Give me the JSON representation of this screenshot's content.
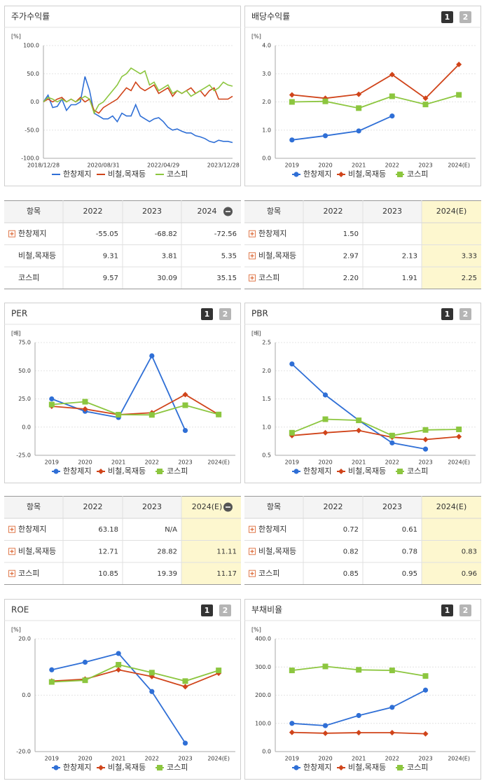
{
  "chart_data": [
    {
      "type": "line",
      "title": "주가수익률",
      "unit": "[%]",
      "categories": [
        "2018/12/28",
        null,
        null,
        null,
        null,
        null,
        null,
        null,
        null,
        null,
        null,
        null,
        null,
        "2020/08/31",
        null,
        null,
        null,
        null,
        null,
        null,
        null,
        null,
        null,
        null,
        null,
        null,
        "2022/04/29",
        null,
        null,
        null,
        null,
        null,
        null,
        null,
        null,
        null,
        null,
        null,
        null,
        "2023/12/28",
        null,
        null
      ],
      "series": [
        {
          "name": "한창제지",
          "color": "#2f6fd6",
          "values": [
            0,
            12,
            -10,
            -8,
            5,
            -15,
            -5,
            -5,
            0,
            45,
            20,
            -20,
            -25,
            -30,
            -30,
            -25,
            -35,
            -20,
            -25,
            -25,
            -5,
            -25,
            -30,
            -35,
            -30,
            -28,
            -35,
            -45,
            -50,
            -48,
            -52,
            -55,
            -55,
            -60,
            -62,
            -65,
            -70,
            -72,
            -68,
            -70,
            -70,
            -72
          ]
        },
        {
          "name": "비철,목재등",
          "color": "#d0441a",
          "values": [
            0,
            5,
            0,
            5,
            8,
            0,
            5,
            0,
            8,
            0,
            5,
            -15,
            -20,
            -10,
            -5,
            0,
            5,
            15,
            25,
            20,
            35,
            25,
            20,
            25,
            30,
            15,
            20,
            25,
            10,
            20,
            15,
            20,
            25,
            15,
            20,
            10,
            20,
            25,
            5,
            5,
            5,
            10
          ]
        },
        {
          "name": "코스피",
          "color": "#8cc63f",
          "values": [
            0,
            8,
            5,
            0,
            5,
            0,
            5,
            0,
            5,
            10,
            5,
            -20,
            -5,
            0,
            10,
            20,
            30,
            45,
            50,
            60,
            55,
            50,
            55,
            30,
            35,
            20,
            25,
            30,
            15,
            20,
            15,
            20,
            10,
            15,
            20,
            25,
            30,
            20,
            25,
            35,
            30,
            28
          ]
        }
      ],
      "ylim": [
        -100,
        100
      ],
      "yticks": [
        {
          "value": -100,
          "label": "-100.0"
        },
        {
          "value": -50,
          "label": "-50.0"
        },
        {
          "value": 0,
          "label": "0.0"
        },
        {
          "value": 50,
          "label": "50.0"
        },
        {
          "value": 100,
          "label": "100.0"
        }
      ],
      "grid": true
    },
    {
      "type": "line",
      "title": "배당수익률",
      "unit": "[%]",
      "pages": [
        "1",
        "2"
      ],
      "categories": [
        "2019",
        "2020",
        "2021",
        "2022",
        "2023",
        "2024(E)"
      ],
      "series": [
        {
          "name": "한창제지",
          "color": "#2f6fd6",
          "marker": "circle",
          "values": [
            0.65,
            0.8,
            0.97,
            1.5,
            null,
            null
          ]
        },
        {
          "name": "비철,목재등",
          "color": "#d0441a",
          "marker": "diamond",
          "values": [
            2.25,
            2.13,
            2.27,
            2.97,
            2.13,
            3.33
          ]
        },
        {
          "name": "코스피",
          "color": "#8cc63f",
          "marker": "square",
          "values": [
            2.0,
            2.02,
            1.78,
            2.2,
            1.91,
            2.25
          ]
        }
      ],
      "ylim": [
        0,
        4
      ],
      "yticks": [
        {
          "value": 0,
          "label": "0.0"
        },
        {
          "value": 1,
          "label": "1.0"
        },
        {
          "value": 2,
          "label": "2.0"
        },
        {
          "value": 3,
          "label": "3.0"
        },
        {
          "value": 4,
          "label": "4.0"
        }
      ],
      "grid": true
    },
    {
      "type": "line",
      "title": "PER",
      "unit": "[배]",
      "pages": [
        "1",
        "2"
      ],
      "categories": [
        "2019",
        "2020",
        "2021",
        "2022",
        "2023",
        "2024(E)"
      ],
      "series": [
        {
          "name": "한창제지",
          "color": "#2f6fd6",
          "marker": "circle",
          "values": [
            25,
            14,
            8.5,
            63.18,
            -3,
            null
          ]
        },
        {
          "name": "비철,목재등",
          "color": "#d0441a",
          "marker": "diamond",
          "values": [
            18.5,
            16,
            11,
            12.71,
            28.82,
            11.11
          ]
        },
        {
          "name": "코스피",
          "color": "#8cc63f",
          "marker": "square",
          "values": [
            20,
            22.5,
            11,
            10.85,
            19.39,
            11.17
          ]
        }
      ],
      "ylim": [
        -25,
        75
      ],
      "yticks": [
        {
          "value": -25,
          "label": "-25.0"
        },
        {
          "value": 0,
          "label": "0.0"
        },
        {
          "value": 25,
          "label": "25.0"
        },
        {
          "value": 50,
          "label": "50.0"
        },
        {
          "value": 75,
          "label": "75.0"
        }
      ],
      "grid": true
    },
    {
      "type": "line",
      "title": "PBR",
      "unit": "[배]",
      "pages": [
        "1",
        "2"
      ],
      "categories": [
        "2019",
        "2020",
        "2021",
        "2022",
        "2023",
        "2024(E)"
      ],
      "series": [
        {
          "name": "한창제지",
          "color": "#2f6fd6",
          "marker": "circle",
          "values": [
            2.12,
            1.57,
            1.12,
            0.72,
            0.61,
            null
          ]
        },
        {
          "name": "비철,목재등",
          "color": "#d0441a",
          "marker": "diamond",
          "values": [
            0.85,
            0.9,
            0.94,
            0.82,
            0.78,
            0.83
          ]
        },
        {
          "name": "코스피",
          "color": "#8cc63f",
          "marker": "square",
          "values": [
            0.9,
            1.14,
            1.12,
            0.85,
            0.95,
            0.96
          ]
        }
      ],
      "ylim": [
        0.5,
        2.5
      ],
      "yticks": [
        0.5,
        {
          "value": 1,
          "label": "1.0"
        },
        1.5,
        {
          "value": 2,
          "label": "2.0"
        },
        2.5
      ],
      "grid": true
    },
    {
      "type": "line",
      "title": "ROE",
      "unit": "[%]",
      "pages": [
        "1",
        "2"
      ],
      "categories": [
        "2019",
        "2020",
        "2021",
        "2022",
        "2023",
        "2024(E)"
      ],
      "series": [
        {
          "name": "한창제지",
          "color": "#2f6fd6",
          "marker": "circle",
          "values": [
            9,
            11.7,
            14.8,
            1.3,
            -17,
            null
          ]
        },
        {
          "name": "비철,목재등",
          "color": "#d0441a",
          "marker": "diamond",
          "values": [
            5,
            5.7,
            9,
            6.6,
            3,
            7.8
          ]
        },
        {
          "name": "코스피",
          "color": "#8cc63f",
          "marker": "square",
          "values": [
            4.7,
            5.3,
            10.8,
            8,
            5,
            8.8
          ]
        }
      ],
      "ylim": [
        -20,
        20
      ],
      "yticks": [
        {
          "value": -20,
          "label": "-20.0"
        },
        {
          "value": 0,
          "label": "0.0"
        },
        {
          "value": 20,
          "label": "20.0"
        }
      ],
      "grid": true
    },
    {
      "type": "line",
      "title": "부채비율",
      "unit": "[%]",
      "pages": [
        "1",
        "2"
      ],
      "categories": [
        "2019",
        "2020",
        "2021",
        "2022",
        "2023",
        "2024(E)"
      ],
      "series": [
        {
          "name": "한창제지",
          "color": "#2f6fd6",
          "marker": "circle",
          "values": [
            100,
            92,
            128,
            157,
            218,
            null
          ]
        },
        {
          "name": "비철,목재등",
          "color": "#d0441a",
          "marker": "diamond",
          "values": [
            68,
            65,
            67,
            67,
            63,
            null
          ]
        },
        {
          "name": "코스피",
          "color": "#8cc63f",
          "marker": "square",
          "values": [
            288,
            302,
            290,
            288,
            268,
            null
          ]
        }
      ],
      "ylim": [
        0,
        400
      ],
      "yticks": [
        {
          "value": 0,
          "label": "0.0"
        },
        {
          "value": 100,
          "label": "100.0"
        },
        {
          "value": 200,
          "label": "200.0"
        },
        {
          "value": 300,
          "label": "300.0"
        },
        {
          "value": 400,
          "label": "400.0"
        }
      ],
      "grid": true
    }
  ],
  "tables": [
    {
      "header": [
        "항목",
        "2022",
        "2023",
        "2024"
      ],
      "collapsible": true,
      "highlight_estimate": false,
      "rows": [
        {
          "expandable": true,
          "cells": [
            "한창제지",
            "-55.05",
            "-68.82",
            "-72.56"
          ]
        },
        {
          "expandable": false,
          "cells": [
            "비철,목재등",
            "9.31",
            "3.81",
            "5.35"
          ]
        },
        {
          "expandable": false,
          "cells": [
            "코스피",
            "9.57",
            "30.09",
            "35.15"
          ]
        }
      ]
    },
    {
      "header": [
        "항목",
        "2022",
        "2023",
        "2024(E)"
      ],
      "collapsible": false,
      "highlight_estimate": true,
      "rows": [
        {
          "expandable": true,
          "cells": [
            "한창제지",
            "1.50",
            null,
            null
          ]
        },
        {
          "expandable": true,
          "cells": [
            "비철,목재등",
            "2.97",
            "2.13",
            "3.33"
          ]
        },
        {
          "expandable": true,
          "cells": [
            "코스피",
            "2.20",
            "1.91",
            "2.25"
          ]
        }
      ]
    },
    {
      "header": [
        "항목",
        "2022",
        "2023",
        "2024(E)"
      ],
      "collapsible": true,
      "highlight_estimate": true,
      "rows": [
        {
          "expandable": true,
          "cells": [
            "한창제지",
            "63.18",
            "N/A",
            null
          ]
        },
        {
          "expandable": true,
          "cells": [
            "비철,목재등",
            "12.71",
            "28.82",
            "11.11"
          ]
        },
        {
          "expandable": true,
          "cells": [
            "코스피",
            "10.85",
            "19.39",
            "11.17"
          ]
        }
      ]
    },
    {
      "header": [
        "항목",
        "2022",
        "2023",
        "2024(E)"
      ],
      "collapsible": false,
      "highlight_estimate": true,
      "rows": [
        {
          "expandable": true,
          "cells": [
            "한창제지",
            "0.72",
            "0.61",
            null
          ]
        },
        {
          "expandable": true,
          "cells": [
            "비철,목재등",
            "0.82",
            "0.78",
            "0.83"
          ]
        },
        {
          "expandable": true,
          "cells": [
            "코스피",
            "0.85",
            "0.95",
            "0.96"
          ]
        }
      ]
    }
  ]
}
